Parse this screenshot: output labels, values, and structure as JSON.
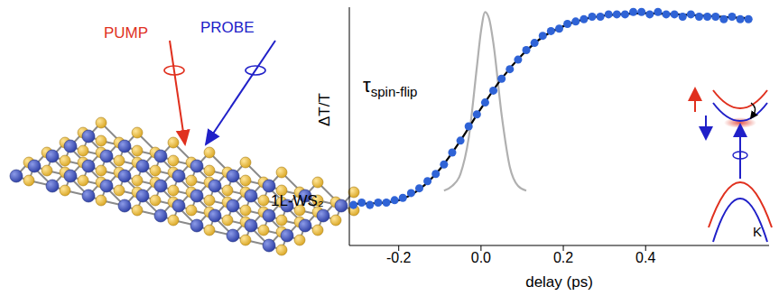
{
  "chart_data": {
    "type": "scatter",
    "x_label": "delay (ps)",
    "y_label": "ΔT/T",
    "xlim": [
      -0.32,
      0.7
    ],
    "xticks": [
      -0.2,
      {
        "value": 0,
        "label": "0.0"
      },
      0.2,
      0.4
    ],
    "ylim": [
      0,
      1
    ],
    "yticks": [],
    "tick_labels": "x",
    "grid": false,
    "annotations": [
      {
        "symbol": "τ",
        "subscript": "spin-flip"
      },
      {
        "text": "K"
      }
    ],
    "series": [
      {
        "type": "line",
        "color": "#b0b0b0",
        "x": [
          -0.09,
          -0.07,
          -0.05,
          -0.03,
          -0.01,
          0.0,
          0.01,
          0.02,
          0.03,
          0.05,
          0.07,
          0.09,
          0.11
        ],
        "values": [
          0.23,
          0.25,
          0.3,
          0.45,
          0.75,
          0.9,
          0.98,
          0.95,
          0.85,
          0.55,
          0.33,
          0.25,
          0.23
        ]
      },
      {
        "type": "scatter",
        "color": "#2f63d6",
        "marker": "circle",
        "x": [
          -0.31,
          -0.29,
          -0.27,
          -0.25,
          -0.23,
          -0.21,
          -0.19,
          -0.17,
          -0.15,
          -0.13,
          -0.11,
          -0.09,
          -0.07,
          -0.05,
          -0.03,
          -0.01,
          0.01,
          0.03,
          0.05,
          0.07,
          0.09,
          0.11,
          0.13,
          0.15,
          0.17,
          0.19,
          0.21,
          0.23,
          0.25,
          0.27,
          0.29,
          0.31,
          0.33,
          0.35,
          0.37,
          0.39,
          0.41,
          0.43,
          0.45,
          0.47,
          0.49,
          0.51,
          0.53,
          0.55,
          0.57,
          0.59,
          0.61,
          0.63,
          0.65
        ],
        "values": [
          0.17,
          0.18,
          0.17,
          0.18,
          0.18,
          0.19,
          0.2,
          0.22,
          0.24,
          0.27,
          0.3,
          0.34,
          0.39,
          0.44,
          0.5,
          0.55,
          0.6,
          0.65,
          0.7,
          0.74,
          0.78,
          0.82,
          0.85,
          0.88,
          0.9,
          0.91,
          0.93,
          0.94,
          0.95,
          0.96,
          0.96,
          0.97,
          0.97,
          0.97,
          0.98,
          0.98,
          0.97,
          0.98,
          0.97,
          0.97,
          0.96,
          0.97,
          0.96,
          0.96,
          0.96,
          0.95,
          0.96,
          0.95,
          0.95
        ]
      },
      {
        "type": "line",
        "color": "#000000",
        "x": [
          -0.31,
          -0.25,
          -0.2,
          -0.15,
          -0.1,
          -0.05,
          0.0,
          0.05,
          0.1,
          0.15,
          0.2,
          0.25,
          0.3,
          0.35,
          0.4,
          0.45,
          0.5,
          0.55,
          0.6,
          0.65
        ],
        "values": [
          0.175,
          0.178,
          0.19,
          0.235,
          0.32,
          0.44,
          0.575,
          0.7,
          0.8,
          0.875,
          0.92,
          0.95,
          0.965,
          0.972,
          0.975,
          0.972,
          0.968,
          0.963,
          0.958,
          0.954
        ]
      }
    ]
  },
  "diagram": {
    "pump": "PUMP",
    "probe": "PROBE",
    "material": "1L-WS₂"
  }
}
